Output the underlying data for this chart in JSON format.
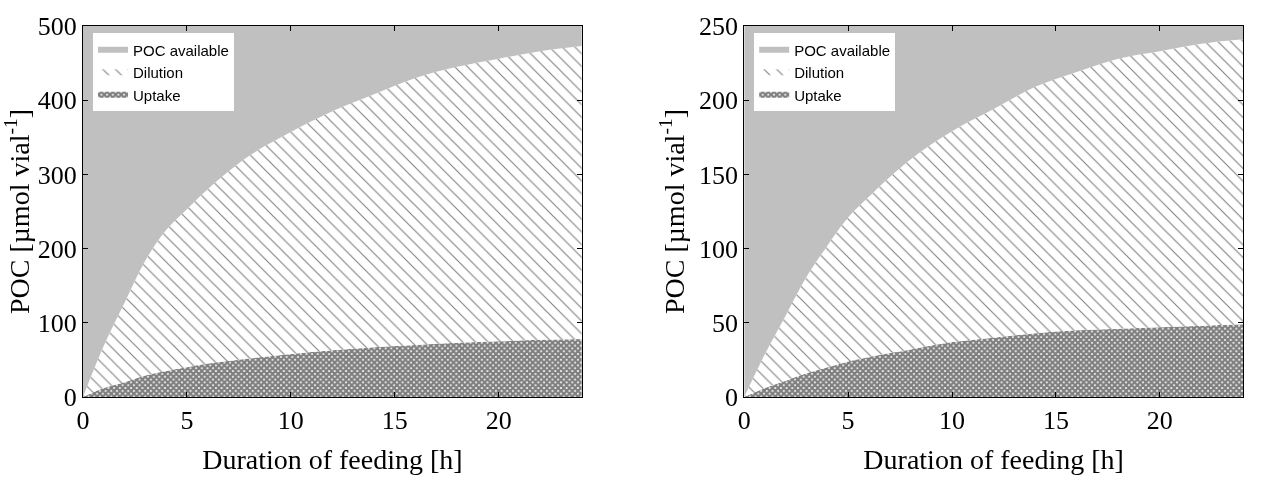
{
  "chart_data": [
    {
      "type": "area",
      "stacked": true,
      "xlabel": "Duration of feeding [h]",
      "ylabel": "POC [µmol vial$^{-1}$]",
      "x": [
        0,
        1,
        2,
        3,
        4,
        5,
        6,
        8,
        10,
        12,
        14,
        16,
        18,
        20,
        22,
        24
      ],
      "xlim": [
        0,
        24
      ],
      "xticks": [
        0,
        5,
        10,
        15,
        20
      ],
      "ylim": [
        0,
        500
      ],
      "yticks": [
        0,
        100,
        200,
        300,
        400,
        500
      ],
      "legend": "top left",
      "series": [
        {
          "name": "Uptake",
          "color": "#000000",
          "values": [
            0,
            12,
            20,
            29,
            35,
            40,
            45,
            52,
            58,
            63,
            67,
            70,
            73,
            75,
            77,
            78
          ]
        },
        {
          "name": "Dilution",
          "color": "#000000",
          "values": [
            0,
            57,
            107,
            155,
            190,
            213,
            235,
            273,
            299,
            322,
            341,
            360,
            372,
            381,
            389,
            395
          ]
        },
        {
          "name": "POC available",
          "color": "#c0c0c0",
          "values": [
            500,
            431,
            373,
            316,
            275,
            247,
            220,
            175,
            143,
            115,
            92,
            70,
            55,
            44,
            34,
            27
          ]
        }
      ]
    },
    {
      "type": "area",
      "stacked": true,
      "xlabel": "Duration of feeding [h]",
      "ylabel": "POC [µmol vial$^{-1}$]",
      "x": [
        0,
        1,
        2,
        3,
        4,
        5,
        6,
        8,
        10,
        12,
        14,
        16,
        18,
        20,
        22,
        24
      ],
      "xlim": [
        0,
        24
      ],
      "xticks": [
        0,
        5,
        10,
        15,
        20
      ],
      "ylim": [
        0,
        250
      ],
      "yticks": [
        0,
        50,
        100,
        150,
        200,
        250
      ],
      "legend": "top left",
      "series": [
        {
          "name": "Uptake",
          "color": "#000000",
          "values": [
            0,
            6,
            11,
            16,
            20,
            24,
            27,
            32,
            37,
            40,
            43,
            45,
            46,
            47,
            48,
            49
          ]
        },
        {
          "name": "Dilution",
          "color": "#000000",
          "values": [
            0,
            23,
            44,
            65,
            82,
            97,
            108,
            128,
            142,
            154,
            166,
            174,
            182,
            186,
            190,
            192
          ]
        },
        {
          "name": "POC available",
          "color": "#c0c0c0",
          "values": [
            250,
            221,
            195,
            169,
            148,
            129,
            115,
            90,
            71,
            56,
            41,
            31,
            22,
            17,
            12,
            9
          ]
        }
      ]
    }
  ]
}
